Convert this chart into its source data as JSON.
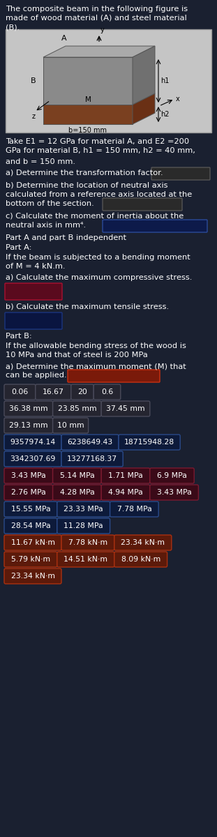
{
  "bg_color": "#1a2030",
  "text_color": "#ffffff",
  "row1": [
    "0.06",
    "16.67",
    "20",
    "0.6"
  ],
  "row2": [
    "36.38 mm",
    "23.85 mm",
    "37.45 mm"
  ],
  "row3": [
    "29.13 mm",
    "10 mm"
  ],
  "row4": [
    "9357974.14",
    "6238649.43",
    "18715948.28"
  ],
  "row5": [
    "3342307.69",
    "13277168.37"
  ],
  "row6": [
    "3.43 MPa",
    "5.14 MPa",
    "1.71 MPa",
    "6.9 MPa"
  ],
  "row7": [
    "2.76 MPa",
    "4.28 MPa",
    "4.94 MPa",
    "3.43 MPa"
  ],
  "row8": [
    "15.55 MPa",
    "23.33 MPa",
    "7.78 MPa"
  ],
  "row9": [
    "28.54 MPa",
    "11.28 MPa"
  ],
  "row10": [
    "11.67 kN·m",
    "7.78 kN·m",
    "23.34 kN·m"
  ],
  "row11": [
    "5.79 kN·m",
    "14.51 kN·m",
    "8.09 kN·m"
  ],
  "row12": [
    "23.34 kN·m"
  ]
}
